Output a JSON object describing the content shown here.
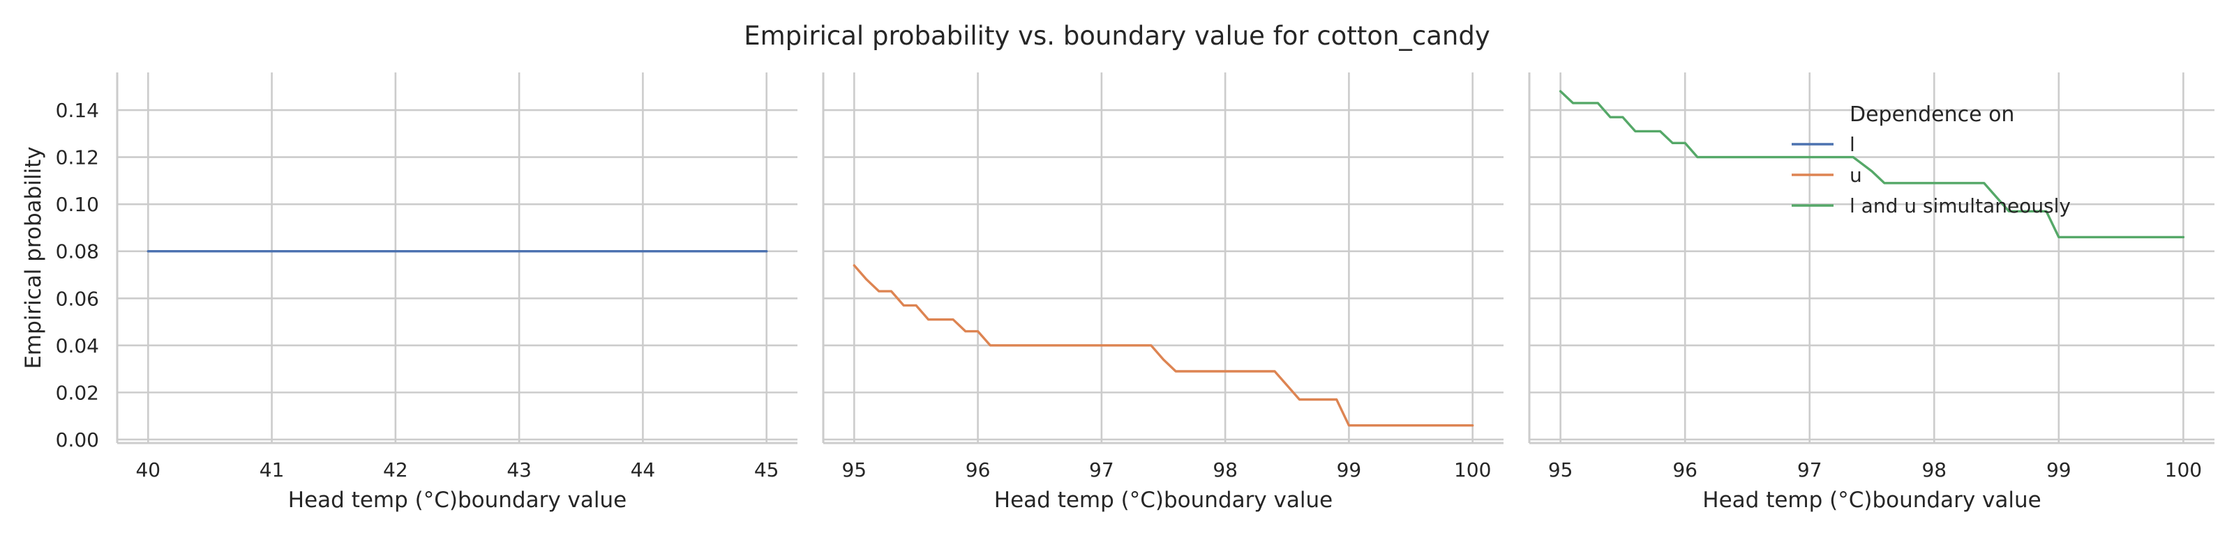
{
  "figure": {
    "title": "Empirical probability vs. boundary value for cotton_candy"
  },
  "legend": {
    "title": "Dependence on",
    "placement": "top-right of third panel",
    "entries": [
      {
        "label": "l",
        "color": "#4c72b0"
      },
      {
        "label": "u",
        "color": "#dd8452"
      },
      {
        "label": "l and u simultaneously",
        "color": "#55a868"
      }
    ]
  },
  "chart_data": [
    {
      "type": "line",
      "title": "",
      "xlabel": "Head temp (°C)boundary value",
      "ylabel": "Empirical probability",
      "xlim": [
        39.75,
        45.25
      ],
      "ylim": [
        -0.0015,
        0.156
      ],
      "xticks": [
        40,
        41,
        42,
        43,
        44,
        45
      ],
      "yticks": [
        0.0,
        0.02,
        0.04,
        0.06,
        0.08,
        0.1,
        0.12,
        0.14
      ],
      "ytick_labels": [
        "0.00",
        "0.02",
        "0.04",
        "0.06",
        "0.08",
        "0.10",
        "0.12",
        "0.14"
      ],
      "grid": true,
      "series": [
        {
          "name": "l",
          "color": "#4c72b0",
          "x": [
            40,
            40.5,
            41,
            41.5,
            42,
            42.5,
            43,
            43.5,
            44,
            44.5,
            45
          ],
          "y": [
            0.08,
            0.08,
            0.08,
            0.08,
            0.08,
            0.08,
            0.08,
            0.08,
            0.08,
            0.08,
            0.08
          ]
        }
      ]
    },
    {
      "type": "line",
      "title": "",
      "xlabel": "Head temp (°C)boundary value",
      "ylabel": "",
      "xlim": [
        94.75,
        100.25
      ],
      "ylim": [
        -0.0015,
        0.156
      ],
      "xticks": [
        95,
        96,
        97,
        98,
        99,
        100
      ],
      "yticks": [
        0.0,
        0.02,
        0.04,
        0.06,
        0.08,
        0.1,
        0.12,
        0.14
      ],
      "grid": true,
      "series": [
        {
          "name": "u",
          "color": "#dd8452",
          "x": [
            95.0,
            95.1,
            95.2,
            95.3,
            95.4,
            95.5,
            95.6,
            95.7,
            95.8,
            95.9,
            96.0,
            96.1,
            96.2,
            96.4,
            96.6,
            96.8,
            97.0,
            97.2,
            97.4,
            97.5,
            97.6,
            97.8,
            98.0,
            98.2,
            98.4,
            98.5,
            98.6,
            98.8,
            98.9,
            99.0,
            99.2,
            99.5,
            99.8,
            100.0
          ],
          "y": [
            0.074,
            0.068,
            0.063,
            0.063,
            0.057,
            0.057,
            0.051,
            0.051,
            0.051,
            0.046,
            0.046,
            0.04,
            0.04,
            0.04,
            0.04,
            0.04,
            0.04,
            0.04,
            0.04,
            0.034,
            0.029,
            0.029,
            0.029,
            0.029,
            0.029,
            0.023,
            0.017,
            0.017,
            0.017,
            0.006,
            0.006,
            0.006,
            0.006,
            0.006
          ]
        }
      ]
    },
    {
      "type": "line",
      "title": "",
      "xlabel": "Head temp (°C)boundary value",
      "ylabel": "",
      "xlim": [
        94.75,
        100.25
      ],
      "ylim": [
        -0.0015,
        0.156
      ],
      "xticks": [
        95,
        96,
        97,
        98,
        99,
        100
      ],
      "yticks": [
        0.0,
        0.02,
        0.04,
        0.06,
        0.08,
        0.1,
        0.12,
        0.14
      ],
      "grid": true,
      "series": [
        {
          "name": "l and u simultaneously",
          "color": "#55a868",
          "x": [
            95.0,
            95.1,
            95.2,
            95.3,
            95.4,
            95.5,
            95.6,
            95.7,
            95.8,
            95.9,
            96.0,
            96.1,
            96.4,
            96.8,
            97.0,
            97.2,
            97.35,
            97.5,
            97.6,
            97.8,
            98.0,
            98.2,
            98.4,
            98.5,
            98.6,
            98.8,
            98.9,
            99.0,
            99.3,
            99.6,
            100.0
          ],
          "y": [
            0.148,
            0.143,
            0.143,
            0.143,
            0.137,
            0.137,
            0.131,
            0.131,
            0.131,
            0.126,
            0.126,
            0.12,
            0.12,
            0.12,
            0.12,
            0.12,
            0.12,
            0.114,
            0.109,
            0.109,
            0.109,
            0.109,
            0.109,
            0.103,
            0.097,
            0.097,
            0.097,
            0.086,
            0.086,
            0.086,
            0.086
          ]
        }
      ]
    }
  ]
}
